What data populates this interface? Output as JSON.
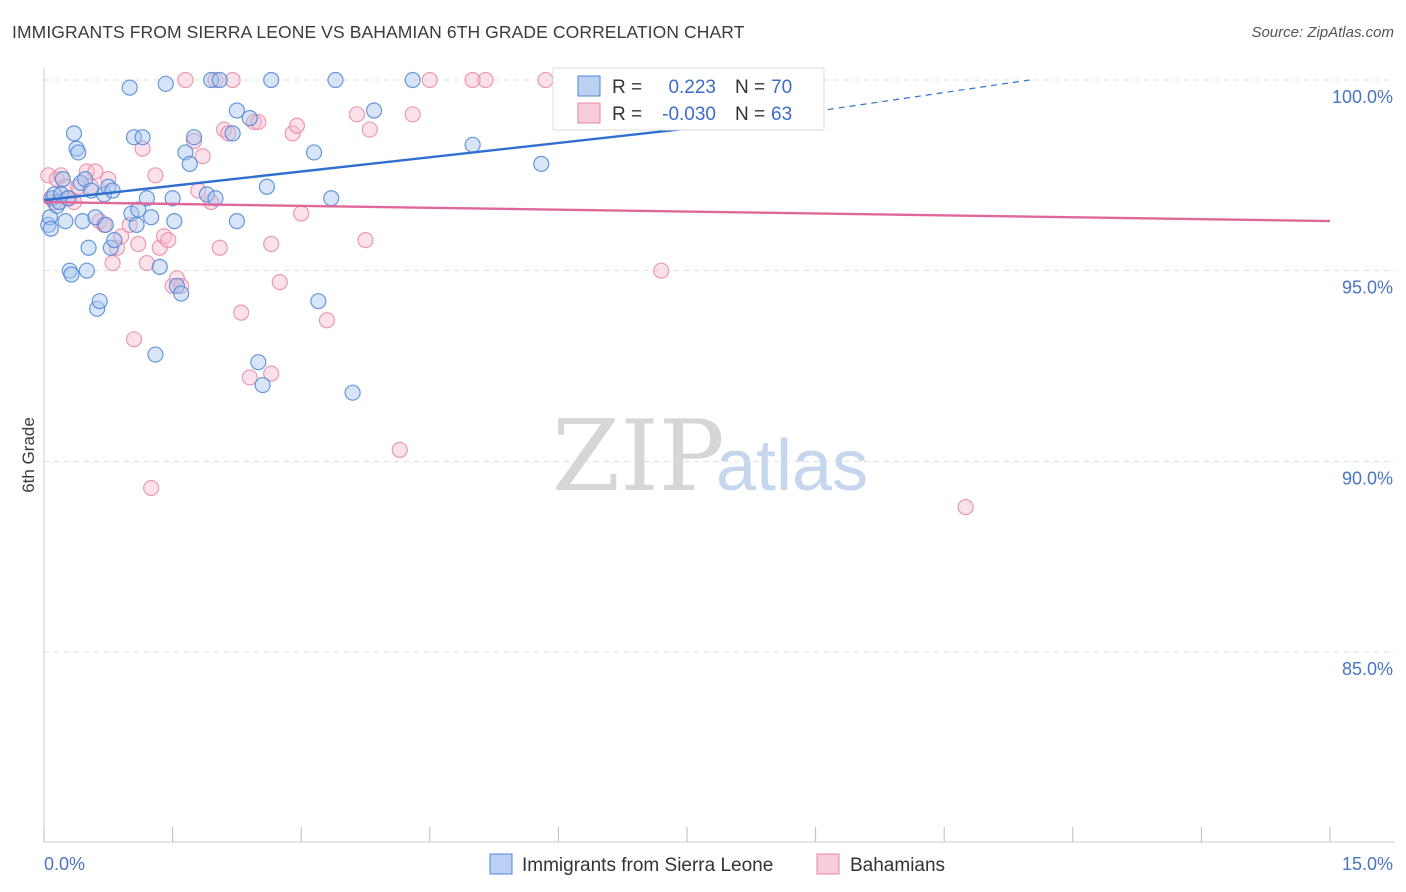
{
  "title": "IMMIGRANTS FROM SIERRA LEONE VS BAHAMIAN 6TH GRADE CORRELATION CHART",
  "source": "Source: ZipAtlas.com",
  "watermark": {
    "zip": "ZIP",
    "atlas": "atlas"
  },
  "colors": {
    "blue_fill": "#a9c6ef",
    "blue_stroke": "#4d86d6",
    "blue_line": "#2f6fd0",
    "pink_fill": "#f6bfd0",
    "pink_stroke": "#e889a8",
    "pink_line": "#e0679a",
    "tick_text": "#4a74c4",
    "grid": "#dddddd"
  },
  "legend": {
    "rows": [
      {
        "r_label": "R =",
        "r_value": "0.223",
        "n_label": "N =",
        "n_value": "70"
      },
      {
        "r_label": "R =",
        "r_value": "-0.030",
        "n_label": "N =",
        "n_value": "63"
      }
    ]
  },
  "chart_data": {
    "type": "scatter",
    "title": "IMMIGRANTS FROM SIERRA LEONE VS BAHAMIAN 6TH GRADE CORRELATION CHART",
    "xlabel": "",
    "ylabel": "6th Grade",
    "xlim": [
      0,
      15
    ],
    "ylim": [
      80.5,
      100.5
    ],
    "x_tick_labels": [
      "0.0%",
      "15.0%"
    ],
    "y_ticks": [
      85,
      90,
      95,
      100
    ],
    "y_tick_labels": [
      "85.0%",
      "90.0%",
      "95.0%",
      "100.0%"
    ],
    "grid": true,
    "series": [
      {
        "name": "Immigrants from Sierra Leone",
        "color": "blue",
        "r": 0.223,
        "n": 70,
        "trend": {
          "x0": 0.0,
          "y0": 96.85,
          "x1": 8.0,
          "y1": 98.85,
          "dashed_to_x": 11.5,
          "dashed_to_y": 100.0
        },
        "points": [
          [
            0.05,
            96.2
          ],
          [
            0.07,
            96.4
          ],
          [
            0.1,
            96.9
          ],
          [
            0.12,
            97.0
          ],
          [
            0.15,
            96.7
          ],
          [
            0.18,
            96.8
          ],
          [
            0.2,
            97.0
          ],
          [
            0.22,
            97.4
          ],
          [
            0.25,
            96.3
          ],
          [
            0.28,
            96.9
          ],
          [
            0.3,
            95.0
          ],
          [
            0.32,
            94.9
          ],
          [
            0.35,
            98.6
          ],
          [
            0.38,
            98.2
          ],
          [
            0.4,
            98.1
          ],
          [
            0.43,
            97.3
          ],
          [
            0.45,
            96.3
          ],
          [
            0.48,
            97.4
          ],
          [
            0.5,
            95.0
          ],
          [
            0.52,
            95.6
          ],
          [
            0.55,
            97.1
          ],
          [
            0.6,
            96.4
          ],
          [
            0.62,
            94.0
          ],
          [
            0.65,
            94.2
          ],
          [
            0.7,
            97.0
          ],
          [
            0.72,
            96.2
          ],
          [
            0.75,
            97.2
          ],
          [
            0.78,
            95.6
          ],
          [
            0.8,
            97.1
          ],
          [
            0.82,
            95.8
          ],
          [
            1.0,
            99.8
          ],
          [
            1.02,
            96.5
          ],
          [
            1.05,
            98.5
          ],
          [
            1.08,
            96.2
          ],
          [
            1.1,
            96.6
          ],
          [
            1.15,
            98.5
          ],
          [
            1.2,
            96.9
          ],
          [
            1.25,
            96.4
          ],
          [
            1.3,
            92.8
          ],
          [
            1.35,
            95.1
          ],
          [
            1.42,
            99.9
          ],
          [
            1.5,
            96.9
          ],
          [
            1.52,
            96.3
          ],
          [
            1.55,
            94.6
          ],
          [
            1.6,
            94.4
          ],
          [
            1.65,
            98.1
          ],
          [
            1.7,
            97.8
          ],
          [
            1.75,
            98.5
          ],
          [
            1.9,
            97.0
          ],
          [
            1.95,
            100.0
          ],
          [
            2.0,
            96.9
          ],
          [
            2.05,
            100.0
          ],
          [
            2.2,
            98.6
          ],
          [
            2.25,
            96.3
          ],
          [
            2.25,
            99.2
          ],
          [
            2.4,
            99.0
          ],
          [
            2.5,
            92.6
          ],
          [
            2.55,
            92.0
          ],
          [
            2.6,
            97.2
          ],
          [
            2.65,
            100.0
          ],
          [
            3.15,
            98.1
          ],
          [
            3.2,
            94.2
          ],
          [
            3.35,
            96.9
          ],
          [
            3.4,
            100.0
          ],
          [
            3.6,
            91.8
          ],
          [
            3.85,
            99.2
          ],
          [
            4.3,
            100.0
          ],
          [
            5.0,
            98.3
          ],
          [
            5.8,
            97.8
          ],
          [
            0.08,
            96.1
          ]
        ]
      },
      {
        "name": "Bahamians",
        "color": "pink",
        "r": -0.03,
        "n": 63,
        "trend": {
          "x0": 0.0,
          "y0": 96.8,
          "x1": 15.0,
          "y1": 96.3
        },
        "points": [
          [
            0.05,
            97.5
          ],
          [
            0.08,
            96.9
          ],
          [
            0.12,
            96.8
          ],
          [
            0.15,
            97.4
          ],
          [
            0.2,
            97.5
          ],
          [
            0.25,
            97.2
          ],
          [
            0.3,
            96.9
          ],
          [
            0.35,
            96.8
          ],
          [
            0.4,
            97.2
          ],
          [
            0.5,
            97.6
          ],
          [
            0.55,
            97.2
          ],
          [
            0.6,
            97.6
          ],
          [
            0.65,
            96.3
          ],
          [
            0.7,
            96.2
          ],
          [
            0.75,
            97.4
          ],
          [
            0.8,
            95.2
          ],
          [
            0.85,
            95.6
          ],
          [
            0.9,
            95.9
          ],
          [
            1.0,
            96.2
          ],
          [
            1.05,
            93.2
          ],
          [
            1.1,
            95.7
          ],
          [
            1.15,
            98.2
          ],
          [
            1.2,
            95.2
          ],
          [
            1.25,
            89.3
          ],
          [
            1.3,
            97.5
          ],
          [
            1.35,
            95.6
          ],
          [
            1.4,
            95.9
          ],
          [
            1.45,
            95.8
          ],
          [
            1.5,
            94.6
          ],
          [
            1.55,
            94.8
          ],
          [
            1.6,
            94.6
          ],
          [
            1.65,
            100.0
          ],
          [
            1.75,
            98.4
          ],
          [
            1.8,
            97.1
          ],
          [
            1.85,
            98.0
          ],
          [
            1.95,
            96.8
          ],
          [
            2.0,
            100.0
          ],
          [
            2.05,
            95.6
          ],
          [
            2.1,
            98.7
          ],
          [
            2.15,
            98.6
          ],
          [
            2.2,
            100.0
          ],
          [
            2.3,
            93.9
          ],
          [
            2.4,
            92.2
          ],
          [
            2.45,
            98.9
          ],
          [
            2.5,
            98.9
          ],
          [
            2.65,
            92.3
          ],
          [
            2.65,
            95.7
          ],
          [
            2.75,
            94.7
          ],
          [
            2.9,
            98.6
          ],
          [
            2.95,
            98.8
          ],
          [
            3.0,
            96.5
          ],
          [
            3.3,
            93.7
          ],
          [
            3.65,
            99.1
          ],
          [
            3.75,
            95.8
          ],
          [
            3.8,
            98.7
          ],
          [
            4.15,
            90.3
          ],
          [
            4.3,
            99.1
          ],
          [
            4.5,
            100.0
          ],
          [
            5.0,
            100.0
          ],
          [
            5.15,
            100.0
          ],
          [
            5.85,
            100.0
          ],
          [
            7.2,
            95.0
          ],
          [
            10.75,
            88.8
          ]
        ]
      }
    ]
  }
}
